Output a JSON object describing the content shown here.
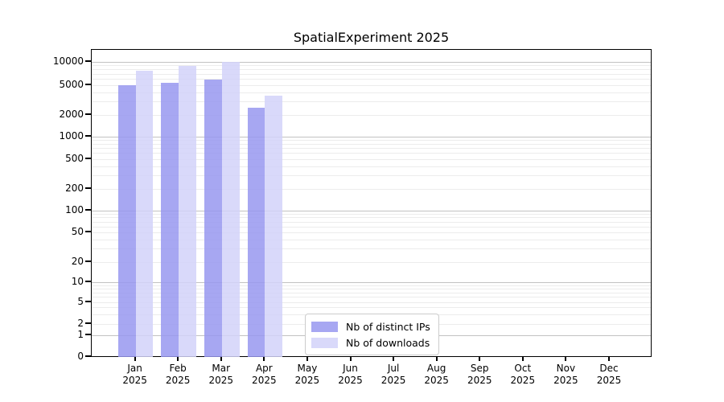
{
  "chart_data": {
    "type": "bar",
    "title": "SpatialExperiment 2025",
    "categories": [
      "Jan",
      "Feb",
      "Mar",
      "Apr",
      "May",
      "Jun",
      "Jul",
      "Aug",
      "Sep",
      "Oct",
      "Nov",
      "Dec"
    ],
    "category_year": "2025",
    "series": [
      {
        "name": "Nb of distinct IPs",
        "color": "#9898f0",
        "opacity": 0.85,
        "values": [
          5000,
          5300,
          5850,
          2450,
          null,
          null,
          null,
          null,
          null,
          null,
          null,
          null
        ]
      },
      {
        "name": "Nb of downloads",
        "color": "#d2d2f9",
        "opacity": 0.85,
        "values": [
          7700,
          8800,
          9900,
          3600,
          null,
          null,
          null,
          null,
          null,
          null,
          null,
          null
        ]
      }
    ],
    "y_ticks": [
      0,
      1,
      2,
      5,
      10,
      20,
      50,
      100,
      200,
      500,
      1000,
      2000,
      5000,
      10000
    ],
    "y_scale": "symlog",
    "ylim": [
      0,
      13000
    ],
    "xlabel": "",
    "ylabel": "",
    "grid": "horizontal, major decades darker + log minors",
    "grid_major_color": "#c2c2c2",
    "grid_minor_color": "#ececec",
    "legend_position": "bottom-center-inside",
    "axis_color": "#000000",
    "background_color": "#ffffff"
  }
}
